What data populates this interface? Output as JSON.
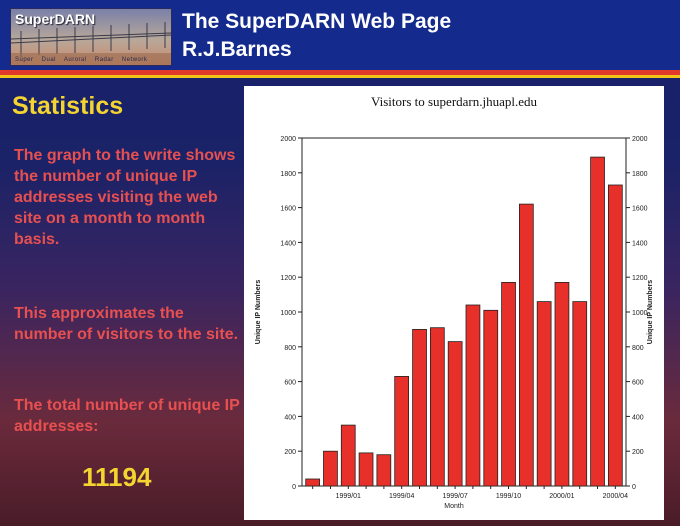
{
  "banner": {
    "title": "SuperDARN",
    "subtitle": "Super Dual Auroral Radar Network"
  },
  "header": {
    "title": "The SuperDARN Web Page",
    "author": "R.J.Barnes"
  },
  "sidebar": {
    "heading": "Statistics",
    "paragraphs": [
      "The graph to the write shows the number of unique IP addresses visiting the web site on a month to month basis.",
      "This approximates the number of visitors to the site.",
      "The total number of unique IP addresses:"
    ],
    "total": "11194"
  },
  "colors": {
    "bar": "#e8302a",
    "heading": "#f4d430",
    "text": "#e85050",
    "header_bg": "#142a8c"
  },
  "chart_data": {
    "type": "bar",
    "title": "Visitors to superdarn.jhuapl.edu",
    "xlabel": "Month",
    "ylabel": "Unique IP Numbers",
    "ylim": [
      0,
      2000
    ],
    "yticks": [
      0,
      200,
      400,
      600,
      800,
      1000,
      1200,
      1400,
      1600,
      1800,
      2000
    ],
    "categories": [
      "1998/11",
      "1998/12",
      "1999/01",
      "1999/02",
      "1999/03",
      "1999/04",
      "1999/05",
      "1999/06",
      "1999/07",
      "1999/08",
      "1999/09",
      "1999/10",
      "1999/11",
      "1999/12",
      "2000/01",
      "2000/02",
      "2000/03",
      "2000/04"
    ],
    "values": [
      40,
      200,
      350,
      190,
      180,
      630,
      900,
      910,
      830,
      1040,
      1010,
      1170,
      1620,
      1060,
      1170,
      1060,
      1890,
      1730
    ],
    "xtick_labels": [
      "1999/01",
      "1999/04",
      "1999/07",
      "1999/10",
      "2000/01",
      "2000/04"
    ],
    "grid": false,
    "right_axis": true
  }
}
